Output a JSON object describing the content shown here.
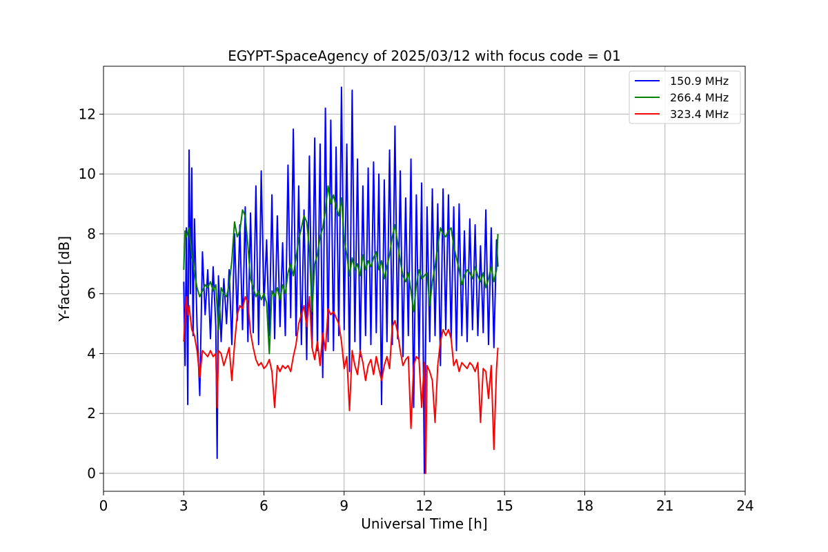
{
  "chart_data": {
    "type": "line",
    "title": "EGYPT-SpaceAgency of 2025/03/12 with focus code = 01",
    "xlabel": "Universal Time [h]",
    "ylabel": "Y-factor [dB]",
    "xlim": [
      0,
      24
    ],
    "ylim": [
      -0.6,
      13.6
    ],
    "xticks": [
      0,
      3,
      6,
      9,
      12,
      15,
      18,
      21,
      24
    ],
    "yticks": [
      0,
      2,
      4,
      6,
      8,
      10,
      12
    ],
    "grid": true,
    "legend_position": "top-right",
    "series": [
      {
        "name": "150.9 MHz",
        "color": "#0000ff",
        "x": [
          3.0,
          3.05,
          3.1,
          3.15,
          3.2,
          3.25,
          3.3,
          3.35,
          3.4,
          3.5,
          3.6,
          3.7,
          3.8,
          3.9,
          4.0,
          4.1,
          4.2,
          4.25,
          4.3,
          4.4,
          4.5,
          4.6,
          4.7,
          4.8,
          4.9,
          5.0,
          5.1,
          5.2,
          5.3,
          5.4,
          5.5,
          5.6,
          5.7,
          5.8,
          5.9,
          6.0,
          6.1,
          6.2,
          6.3,
          6.4,
          6.5,
          6.6,
          6.7,
          6.8,
          6.9,
          7.0,
          7.1,
          7.2,
          7.3,
          7.4,
          7.5,
          7.6,
          7.7,
          7.8,
          7.9,
          8.0,
          8.1,
          8.2,
          8.3,
          8.4,
          8.5,
          8.6,
          8.7,
          8.8,
          8.9,
          9.0,
          9.1,
          9.2,
          9.3,
          9.4,
          9.5,
          9.6,
          9.7,
          9.8,
          9.9,
          10.0,
          10.1,
          10.2,
          10.3,
          10.4,
          10.5,
          10.6,
          10.7,
          10.8,
          10.9,
          11.0,
          11.1,
          11.2,
          11.3,
          11.4,
          11.5,
          11.6,
          11.7,
          11.8,
          11.9,
          12.0,
          12.1,
          12.2,
          12.3,
          12.4,
          12.5,
          12.6,
          12.7,
          12.8,
          12.9,
          13.0,
          13.1,
          13.2,
          13.3,
          13.4,
          13.5,
          13.6,
          13.7,
          13.8,
          13.9,
          14.0,
          14.1,
          14.2,
          14.3,
          14.4,
          14.5,
          14.6,
          14.7,
          14.75
        ],
        "y": [
          6.4,
          3.6,
          8.2,
          2.3,
          10.8,
          6.0,
          10.2,
          4.6,
          8.5,
          4.9,
          2.6,
          7.4,
          5.3,
          6.8,
          4.5,
          6.9,
          4.9,
          0.5,
          6.6,
          4.4,
          6.5,
          5.0,
          6.8,
          4.3,
          8.0,
          5.1,
          8.3,
          4.8,
          8.9,
          4.4,
          8.7,
          4.7,
          9.6,
          4.3,
          10.1,
          5.6,
          7.8,
          4.6,
          9.3,
          4.5,
          8.6,
          4.9,
          7.7,
          4.6,
          10.3,
          5.2,
          11.5,
          4.6,
          9.6,
          4.3,
          8.8,
          3.8,
          10.6,
          4.2,
          11.2,
          4.1,
          11.0,
          3.2,
          12.2,
          4.4,
          11.8,
          4.1,
          10.9,
          4.6,
          12.9,
          4.8,
          11.0,
          3.4,
          12.8,
          4.4,
          10.5,
          3.9,
          9.6,
          4.6,
          10.2,
          4.3,
          10.4,
          4.7,
          10.0,
          2.3,
          9.8,
          4.4,
          10.8,
          4.3,
          11.6,
          4.5,
          10.1,
          3.9,
          9.2,
          4.6,
          10.5,
          2.2,
          9.3,
          3.8,
          9.7,
          0.0,
          8.9,
          4.4,
          9.5,
          4.6,
          9.0,
          3.6,
          9.5,
          4.8,
          9.3,
          4.5,
          8.9,
          4.1,
          9.0,
          4.6,
          8.1,
          4.4,
          8.5,
          4.8,
          8.3,
          4.6,
          7.6,
          4.7,
          8.8,
          4.3,
          8.2,
          4.2,
          7.8,
          6.9
        ]
      },
      {
        "name": "266.4 MHz",
        "color": "#008000",
        "x": [
          3.0,
          3.05,
          3.1,
          3.2,
          3.3,
          3.4,
          3.5,
          3.6,
          3.7,
          3.8,
          3.9,
          4.0,
          4.1,
          4.2,
          4.3,
          4.4,
          4.5,
          4.6,
          4.7,
          4.8,
          4.9,
          5.0,
          5.1,
          5.2,
          5.3,
          5.4,
          5.5,
          5.6,
          5.7,
          5.8,
          5.9,
          6.0,
          6.1,
          6.2,
          6.3,
          6.4,
          6.5,
          6.6,
          6.7,
          6.8,
          6.9,
          7.0,
          7.1,
          7.2,
          7.3,
          7.4,
          7.5,
          7.6,
          7.7,
          7.8,
          7.9,
          8.0,
          8.1,
          8.2,
          8.3,
          8.4,
          8.5,
          8.6,
          8.7,
          8.8,
          8.9,
          9.0,
          9.1,
          9.2,
          9.3,
          9.4,
          9.5,
          9.6,
          9.7,
          9.8,
          9.9,
          10.0,
          10.1,
          10.2,
          10.3,
          10.4,
          10.5,
          10.6,
          10.7,
          10.8,
          10.9,
          11.0,
          11.1,
          11.2,
          11.3,
          11.4,
          11.5,
          11.6,
          11.7,
          11.8,
          11.9,
          12.0,
          12.1,
          12.2,
          12.3,
          12.4,
          12.5,
          12.6,
          12.7,
          12.8,
          12.9,
          13.0,
          13.1,
          13.2,
          13.3,
          13.4,
          13.5,
          13.6,
          13.7,
          13.8,
          13.9,
          14.0,
          14.1,
          14.2,
          14.3,
          14.4,
          14.5,
          14.6,
          14.7,
          14.75
        ],
        "y": [
          6.8,
          8.1,
          7.9,
          8.2,
          7.3,
          6.7,
          6.2,
          5.9,
          6.1,
          6.3,
          6.2,
          6.4,
          6.1,
          6.3,
          4.8,
          6.2,
          6.0,
          5.9,
          6.3,
          7.1,
          8.4,
          7.9,
          8.1,
          8.8,
          8.6,
          7.6,
          6.5,
          6.2,
          5.9,
          6.1,
          5.8,
          6.0,
          5.7,
          4.0,
          6.1,
          5.9,
          6.2,
          5.8,
          6.3,
          6.0,
          6.7,
          7.0,
          6.6,
          7.2,
          7.8,
          8.2,
          8.6,
          8.4,
          7.5,
          5.4,
          7.0,
          7.3,
          7.9,
          8.2,
          8.8,
          9.6,
          9.0,
          9.3,
          8.9,
          8.6,
          9.2,
          7.8,
          7.3,
          6.6,
          7.2,
          6.8,
          7.0,
          6.6,
          7.3,
          6.8,
          7.1,
          6.9,
          7.2,
          7.4,
          6.8,
          7.1,
          6.5,
          6.9,
          7.3,
          7.9,
          8.3,
          7.7,
          7.1,
          6.6,
          6.4,
          6.7,
          6.1,
          5.4,
          6.3,
          6.8,
          6.5,
          6.6,
          6.7,
          5.6,
          6.4,
          6.9,
          7.6,
          8.2,
          8.0,
          7.9,
          8.1,
          8.2,
          7.6,
          7.2,
          6.8,
          6.3,
          6.6,
          6.8,
          6.7,
          6.5,
          6.9,
          6.6,
          6.4,
          6.7,
          6.2,
          6.5,
          6.9,
          6.4,
          6.8,
          8.0
        ]
      },
      {
        "name": "323.4 MHz",
        "color": "#ff0000",
        "x": [
          3.0,
          3.05,
          3.1,
          3.15,
          3.2,
          3.3,
          3.4,
          3.5,
          3.6,
          3.7,
          3.8,
          3.9,
          4.0,
          4.1,
          4.2,
          4.25,
          4.3,
          4.4,
          4.5,
          4.6,
          4.7,
          4.8,
          4.9,
          5.0,
          5.1,
          5.2,
          5.3,
          5.4,
          5.5,
          5.6,
          5.7,
          5.8,
          5.9,
          6.0,
          6.1,
          6.2,
          6.3,
          6.4,
          6.5,
          6.6,
          6.7,
          6.8,
          6.9,
          7.0,
          7.1,
          7.2,
          7.3,
          7.4,
          7.5,
          7.6,
          7.7,
          7.8,
          7.9,
          8.0,
          8.1,
          8.2,
          8.3,
          8.4,
          8.5,
          8.6,
          8.7,
          8.8,
          8.9,
          9.0,
          9.1,
          9.2,
          9.3,
          9.4,
          9.5,
          9.6,
          9.7,
          9.8,
          9.9,
          10.0,
          10.1,
          10.2,
          10.3,
          10.4,
          10.5,
          10.6,
          10.7,
          10.8,
          10.9,
          11.0,
          11.1,
          11.2,
          11.3,
          11.4,
          11.5,
          11.6,
          11.7,
          11.8,
          11.9,
          12.0,
          12.05,
          12.1,
          12.2,
          12.3,
          12.4,
          12.5,
          12.6,
          12.7,
          12.8,
          12.9,
          13.0,
          13.1,
          13.2,
          13.3,
          13.4,
          13.5,
          13.6,
          13.7,
          13.8,
          13.9,
          14.0,
          14.1,
          14.2,
          14.3,
          14.4,
          14.5,
          14.6,
          14.7,
          14.75
        ],
        "y": [
          4.4,
          5.2,
          5.9,
          5.3,
          5.6,
          4.8,
          4.6,
          4.1,
          3.2,
          4.1,
          4.0,
          3.9,
          4.1,
          3.9,
          4.0,
          2.2,
          4.1,
          4.0,
          3.6,
          3.9,
          4.2,
          3.1,
          4.3,
          5.3,
          5.6,
          5.5,
          5.9,
          5.7,
          4.7,
          4.2,
          3.8,
          3.6,
          3.7,
          3.5,
          3.6,
          3.8,
          3.4,
          2.2,
          3.6,
          3.4,
          3.6,
          3.5,
          3.6,
          3.4,
          3.9,
          4.3,
          5.0,
          5.3,
          5.6,
          4.9,
          5.9,
          4.2,
          3.8,
          4.4,
          3.6,
          4.7,
          4.1,
          5.5,
          5.3,
          5.4,
          5.2,
          5.0,
          4.4,
          3.5,
          3.9,
          2.1,
          4.1,
          3.6,
          3.3,
          4.1,
          3.7,
          3.1,
          3.6,
          3.8,
          3.3,
          3.9,
          3.5,
          3.1,
          3.6,
          3.9,
          3.5,
          4.9,
          5.1,
          4.7,
          4.1,
          3.6,
          3.8,
          3.9,
          1.5,
          3.6,
          3.9,
          3.8,
          2.2,
          3.7,
          0.0,
          3.6,
          3.4,
          3.1,
          1.7,
          3.6,
          4.4,
          4.8,
          4.6,
          4.8,
          4.5,
          3.6,
          3.8,
          3.4,
          3.7,
          3.6,
          3.5,
          3.7,
          3.6,
          3.4,
          3.7,
          1.7,
          3.5,
          3.4,
          2.5,
          3.6,
          0.8,
          3.5,
          4.2
        ]
      }
    ]
  }
}
